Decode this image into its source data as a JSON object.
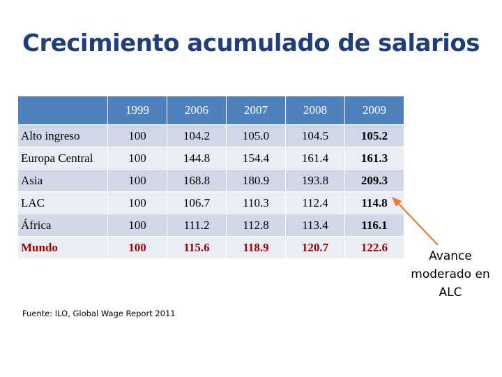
{
  "slide": {
    "title": "Crecimiento acumulado de salarios",
    "source": "Fuente: ILO, Global Wage Report 2011",
    "note": "Avance moderado en ALC"
  },
  "table": {
    "corner": "",
    "years": [
      "1999",
      "2006",
      "2007",
      "2008",
      "2009"
    ],
    "rows": [
      {
        "label": "Alto ingreso",
        "values": [
          "100",
          "104.2",
          "105.0",
          "104.5",
          "105.2"
        ]
      },
      {
        "label": "Europa Central",
        "values": [
          "100",
          "144.8",
          "154.4",
          "161.4",
          "161.3"
        ]
      },
      {
        "label": "Asia",
        "values": [
          "100",
          "168.8",
          "180.9",
          "193.8",
          "209.3"
        ]
      },
      {
        "label": "LAC",
        "values": [
          "100",
          "106.7",
          "110.3",
          "112.4",
          "114.8"
        ]
      },
      {
        "label": "África",
        "values": [
          "100",
          "111.2",
          "112.8",
          "113.4",
          "116.1"
        ]
      },
      {
        "label": "Mundo",
        "values": [
          "100",
          "115.6",
          "118.9",
          "120.7",
          "122.6"
        ]
      }
    ]
  },
  "colors": {
    "title": "#1f3e7a",
    "header_bg": "#4f81bd",
    "row_odd": "#d0d8e8",
    "row_even": "#e9edf4",
    "total_text": "#a00000",
    "arrow": "#f07a2c"
  }
}
